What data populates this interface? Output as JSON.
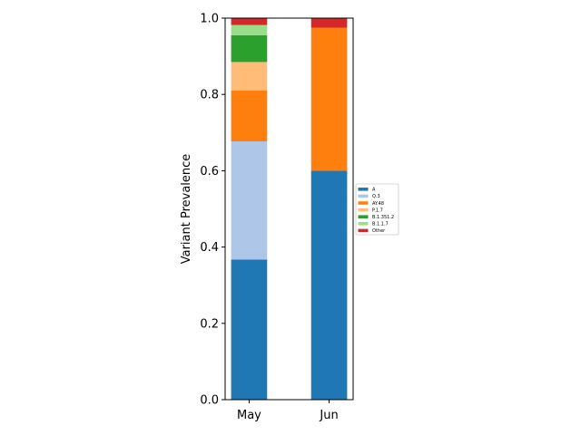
{
  "chart_data": {
    "type": "bar",
    "stacked": true,
    "categories": [
      "May",
      "Jun"
    ],
    "ylabel": "Variant Prevalence",
    "ylim": [
      0,
      1
    ],
    "yticks": [
      "0.0",
      "0.2",
      "0.4",
      "0.6",
      "0.8",
      "1.0"
    ],
    "legend_placement": "center-right outside",
    "series": [
      {
        "name": "A",
        "color": "#1f77b4",
        "values": [
          0.367,
          0.6
        ]
      },
      {
        "name": "Q.3",
        "color": "#aec7e8",
        "values": [
          0.31,
          0.0
        ]
      },
      {
        "name": "AY.48",
        "color": "#ff7f0e",
        "values": [
          0.133,
          0.375
        ]
      },
      {
        "name": "P.1.7",
        "color": "#ffbb78",
        "values": [
          0.075,
          0.0
        ]
      },
      {
        "name": "B.1.351.2",
        "color": "#2ca02c",
        "values": [
          0.07,
          0.0
        ]
      },
      {
        "name": "B.1.1.7",
        "color": "#98df8a",
        "values": [
          0.027,
          0.0
        ]
      },
      {
        "name": "Other",
        "color": "#d62728",
        "values": [
          0.018,
          0.025
        ]
      }
    ]
  }
}
